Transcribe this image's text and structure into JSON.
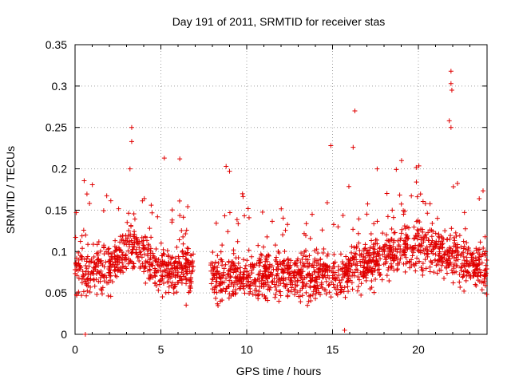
{
  "chart_data": {
    "type": "scatter",
    "title": "Day 191 of 2011, SRMTID for receiver stas",
    "xlabel": "GPS time / hours",
    "ylabel": "SRMTID / TECUs",
    "xlim": [
      0,
      24
    ],
    "ylim": [
      0,
      0.35
    ],
    "xticks": [
      0,
      5,
      10,
      15,
      20
    ],
    "xtick_labels": [
      "0",
      "5",
      "10",
      "15",
      "20"
    ],
    "yticks": [
      0,
      0.05,
      0.1,
      0.15,
      0.2,
      0.25,
      0.3,
      0.35
    ],
    "ytick_labels": [
      "0",
      "0.05",
      "0.1",
      "0.15",
      "0.2",
      "0.25",
      "0.3",
      "0.35"
    ],
    "grid": true,
    "marker": "+",
    "color": "#e00000",
    "series": [
      {
        "name": "SRMTID",
        "segments": [
          {
            "x_start": 0.0,
            "x_end": 6.9,
            "base": 0.078,
            "spread": 0.05,
            "amp_hours": 3.3,
            "amp_height": 0.055
          },
          {
            "x_start": 7.9,
            "x_end": 24.0,
            "base": 0.07,
            "spread": 0.05
          }
        ],
        "notable_points": [
          {
            "x": 3.3,
            "y": 0.25
          },
          {
            "x": 3.3,
            "y": 0.233
          },
          {
            "x": 3.2,
            "y": 0.2
          },
          {
            "x": 5.2,
            "y": 0.213
          },
          {
            "x": 6.1,
            "y": 0.212
          },
          {
            "x": 8.8,
            "y": 0.203
          },
          {
            "x": 9.0,
            "y": 0.197
          },
          {
            "x": 14.9,
            "y": 0.228
          },
          {
            "x": 16.3,
            "y": 0.27
          },
          {
            "x": 16.2,
            "y": 0.226
          },
          {
            "x": 17.6,
            "y": 0.2
          },
          {
            "x": 21.9,
            "y": 0.318
          },
          {
            "x": 21.9,
            "y": 0.303
          },
          {
            "x": 21.95,
            "y": 0.295
          },
          {
            "x": 21.8,
            "y": 0.258
          },
          {
            "x": 21.9,
            "y": 0.25
          },
          {
            "x": 0.6,
            "y": 0.0
          },
          {
            "x": 15.7,
            "y": 0.005
          }
        ]
      }
    ]
  }
}
